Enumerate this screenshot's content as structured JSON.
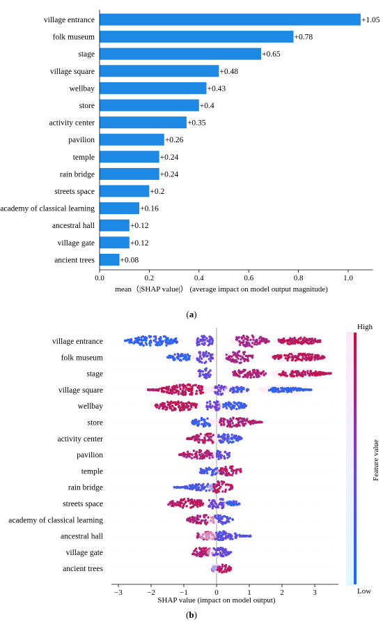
{
  "chart_data": [
    {
      "type": "bar",
      "orientation": "horizontal",
      "panel_label": "a",
      "categories": [
        "village entrance",
        "folk museum",
        "stage",
        "village square",
        "wellbay",
        "store",
        "activity center",
        "pavilion",
        "temple",
        "rain bridge",
        "streets space",
        "academy of classical learning",
        "ancestral hall",
        "village gate",
        "ancient trees"
      ],
      "values": [
        1.05,
        0.78,
        0.65,
        0.48,
        0.43,
        0.4,
        0.35,
        0.26,
        0.24,
        0.24,
        0.2,
        0.16,
        0.12,
        0.12,
        0.08
      ],
      "value_labels": [
        "+1.05",
        "+0.78",
        "+0.65",
        "+0.48",
        "+0.43",
        "+0.4",
        "+0.35",
        "+0.26",
        "+0.24",
        "+0.24",
        "+0.2",
        "+0.16",
        "+0.12",
        "+0.12",
        "+0.08"
      ],
      "xlabel": "mean（|SHAP value|）  (average impact on model output magnitude)",
      "xlim": [
        0,
        1.1
      ],
      "xticks": [
        "0.0",
        "0.2",
        "0.4",
        "0.6",
        "0.8",
        "1.0"
      ],
      "color": "#1e88e5"
    },
    {
      "type": "scatter",
      "subtype": "beeswarm",
      "panel_label": "b",
      "categories": [
        "village entrance",
        "folk museum",
        "stage",
        "village square",
        "wellbay",
        "store",
        "activity center",
        "pavilion",
        "temple",
        "rain bridge",
        "streets space",
        "academy of classical learning",
        "ancestral hall",
        "village gate",
        "ancient trees"
      ],
      "xlabel": "SHAP value  (impact on model output)",
      "xlim": [
        -3.3,
        3.8
      ],
      "xticks": [
        "−3",
        "−2",
        "−1",
        "0",
        "1",
        "2",
        "3"
      ],
      "colorbar": {
        "label": "Feature value",
        "high": "High",
        "low": "Low",
        "low_color": "#1e6cf0",
        "high_color": "#c8103c"
      },
      "clusters": [
        [
          {
            "min": -2.8,
            "max": -1.2,
            "center": -1.9,
            "h": 0.9,
            "c": 0.1
          },
          {
            "min": -0.6,
            "max": -0.1,
            "center": -0.4,
            "h": 1.0,
            "c": 0.4
          },
          {
            "min": 0.6,
            "max": 1.6,
            "center": 1.0,
            "h": 1.0,
            "c": 0.75
          },
          {
            "min": 1.9,
            "max": 3.2,
            "center": 2.5,
            "h": 0.6,
            "c": 0.9
          }
        ],
        [
          {
            "min": -1.5,
            "max": -0.8,
            "center": -1.1,
            "h": 0.6,
            "c": 0.1
          },
          {
            "min": -0.6,
            "max": -0.1,
            "center": -0.4,
            "h": 1.0,
            "c": 0.4
          },
          {
            "min": 0.3,
            "max": 1.1,
            "center": 0.7,
            "h": 1.0,
            "c": 0.75
          },
          {
            "min": 1.7,
            "max": 3.3,
            "center": 2.5,
            "h": 0.6,
            "c": 0.9
          }
        ],
        [
          {
            "min": -0.55,
            "max": -0.15,
            "center": -0.35,
            "h": 0.9,
            "c": 0.35
          },
          {
            "min": 0.5,
            "max": 1.5,
            "center": 1.0,
            "h": 0.7,
            "c": 0.8
          },
          {
            "min": 1.9,
            "max": 3.5,
            "center": 2.5,
            "h": 0.5,
            "c": 0.9
          }
        ],
        [
          {
            "min": -2.1,
            "max": -0.4,
            "center": -0.9,
            "h": 0.9,
            "c": 0.9
          },
          {
            "min": -0.05,
            "max": 0.3,
            "center": 0.1,
            "h": 0.9,
            "c": 0.4
          },
          {
            "min": 0.4,
            "max": 1.0,
            "center": 0.6,
            "h": 0.5,
            "c": 0.2
          },
          {
            "min": 1.6,
            "max": 2.9,
            "center": 2.0,
            "h": 0.4,
            "c": 0.1
          }
        ],
        [
          {
            "min": -1.9,
            "max": -0.6,
            "center": -1.2,
            "h": 0.8,
            "c": 0.9
          },
          {
            "min": -0.3,
            "max": 0.1,
            "center": -0.1,
            "h": 0.9,
            "c": 0.4
          },
          {
            "min": 0.2,
            "max": 0.9,
            "center": 0.5,
            "h": 0.7,
            "c": 0.15
          }
        ],
        [
          {
            "min": -0.75,
            "max": -0.2,
            "center": -0.4,
            "h": 0.8,
            "c": 0.15
          },
          {
            "min": 0.1,
            "max": 1.4,
            "center": 0.5,
            "h": 0.8,
            "c": 0.8
          }
        ],
        [
          {
            "min": -0.9,
            "max": -0.1,
            "center": -0.3,
            "h": 0.9,
            "c": 0.85
          },
          {
            "min": 0.05,
            "max": 0.8,
            "center": 0.3,
            "h": 0.8,
            "c": 0.2
          }
        ],
        [
          {
            "min": -1.15,
            "max": -0.1,
            "center": -0.5,
            "h": 0.8,
            "c": 0.8
          },
          {
            "min": 0.0,
            "max": 0.4,
            "center": 0.15,
            "h": 0.9,
            "c": 0.35
          }
        ],
        [
          {
            "min": -0.5,
            "max": 0.05,
            "center": -0.2,
            "h": 0.7,
            "c": 0.2
          },
          {
            "min": 0.1,
            "max": 0.75,
            "center": 0.4,
            "h": 0.8,
            "c": 0.85
          }
        ],
        [
          {
            "min": -1.3,
            "max": -0.05,
            "center": -0.3,
            "h": 0.6,
            "c": 0.2
          },
          {
            "min": -0.1,
            "max": 0.5,
            "center": 0.1,
            "h": 1.0,
            "c": 0.85
          }
        ],
        [
          {
            "min": -1.5,
            "max": -0.4,
            "center": -0.9,
            "h": 0.8,
            "c": 0.9
          },
          {
            "min": -0.25,
            "max": 0.25,
            "center": 0.0,
            "h": 1.0,
            "c": 0.4
          },
          {
            "min": 0.3,
            "max": 0.7,
            "center": 0.5,
            "h": 0.4,
            "c": 0.15
          }
        ],
        [
          {
            "min": -0.9,
            "max": -0.05,
            "center": -0.4,
            "h": 0.8,
            "c": 0.8
          },
          {
            "min": -0.05,
            "max": 0.5,
            "center": 0.1,
            "h": 0.8,
            "c": 0.3
          }
        ],
        [
          {
            "min": -0.6,
            "max": 0.1,
            "center": -0.3,
            "h": 0.7,
            "c": 0.8
          },
          {
            "min": -0.05,
            "max": 1.05,
            "center": 0.1,
            "h": 0.8,
            "c": 0.3
          }
        ],
        [
          {
            "min": -0.75,
            "max": -0.1,
            "center": -0.4,
            "h": 0.8,
            "c": 0.8
          },
          {
            "min": -0.1,
            "max": 0.45,
            "center": 0.05,
            "h": 0.8,
            "c": 0.35
          }
        ],
        [
          {
            "min": -0.15,
            "max": 0.05,
            "center": -0.05,
            "h": 0.5,
            "c": 0.3
          },
          {
            "min": 0.0,
            "max": 0.45,
            "center": 0.15,
            "h": 0.7,
            "c": 0.85
          }
        ]
      ]
    }
  ]
}
